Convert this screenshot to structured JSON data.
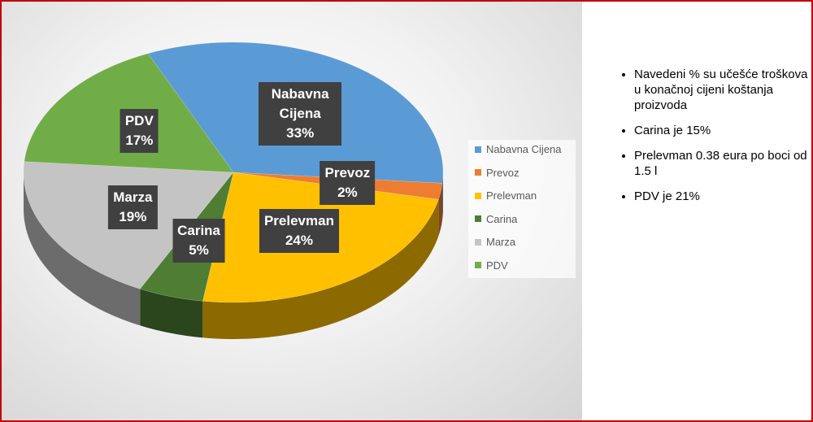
{
  "chart_data": {
    "type": "pie",
    "categories": [
      "Nabavna Cijena",
      "Prevoz",
      "Prelevman",
      "Carina",
      "Marza",
      "PDV"
    ],
    "values": [
      33,
      2,
      24,
      5,
      19,
      17
    ],
    "value_labels": [
      "33%",
      "2%",
      "24%",
      "5%",
      "19%",
      "17%"
    ],
    "colors": [
      "#5b9bd5",
      "#ed7d31",
      "#ffc000",
      "#4e7d33",
      "#c4c4c4",
      "#70ad47"
    ],
    "legend": "right",
    "annotations": [
      "Navedeni % su učešće troškova u konačnoj cijeni koštanja proizvoda",
      "Carina je 15%",
      "Prelevman 0.38 eura po boci od 1.5 l",
      "PDV je 21%"
    ]
  }
}
